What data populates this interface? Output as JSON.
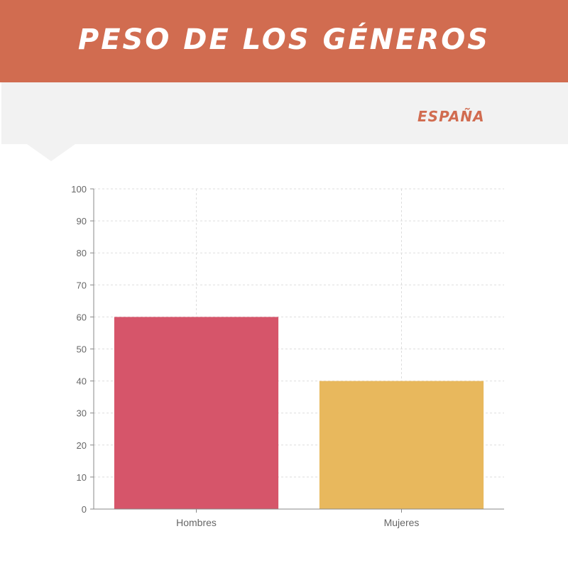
{
  "header": {
    "title": "PESO DE LOS GÉNEROS",
    "subtitle": "ESPAÑA",
    "color": "#d16c50",
    "band_color": "#f2f2f2"
  },
  "chart_data": {
    "type": "bar",
    "categories": [
      "Hombres",
      "Mujeres"
    ],
    "values": [
      60,
      40
    ],
    "colors": [
      "#d6556a",
      "#e8b85d"
    ],
    "ylim": [
      0,
      100
    ],
    "yticks": [
      0,
      10,
      20,
      30,
      40,
      50,
      60,
      70,
      80,
      90,
      100
    ],
    "grid": true,
    "title": "",
    "xlabel": "",
    "ylabel": ""
  }
}
